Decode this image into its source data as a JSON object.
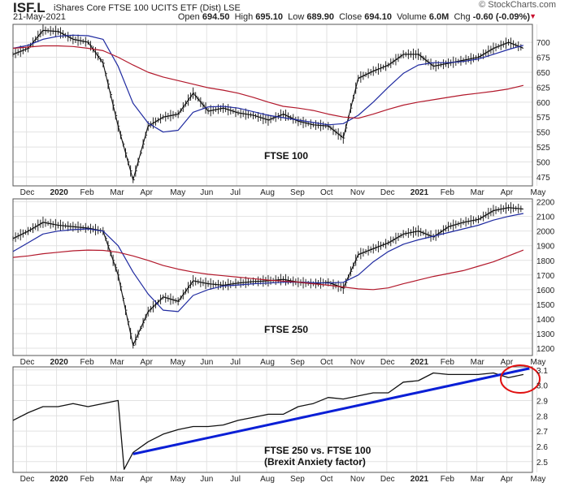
{
  "header": {
    "symbol": "ISF.L",
    "name": "iShares Core FTSE 100 UCITS ETF (Dist)",
    "exchange": "LSE",
    "date": "21-May-2021",
    "brand": "© StockCharts.com",
    "open_label": "Open",
    "open": "694.50",
    "high_label": "High",
    "high": "695.10",
    "low_label": "Low",
    "low": "689.90",
    "close_label": "Close",
    "close": "694.10",
    "volume_label": "Volume",
    "volume": "6.0M",
    "chg_label": "Chg",
    "chg": "-0.60 (-0.09%)",
    "chg_arrow": "▼"
  },
  "colors": {
    "price": "#111111",
    "ma_short": "#1f2aa0",
    "ma_long": "#b2182b",
    "trendline": "#0a1fd6",
    "circle": "#e01010",
    "grid": "#e2e2e2",
    "frame": "#555555"
  },
  "chart_data": [
    {
      "type": "line",
      "title": "FTSE 100",
      "x_months": [
        "Dec",
        "2020",
        "Feb",
        "Mar",
        "Apr",
        "May",
        "Jun",
        "Jul",
        "Aug",
        "Sep",
        "Oct",
        "Nov",
        "Dec",
        "2021",
        "Feb",
        "Mar",
        "Apr",
        "May"
      ],
      "ylim": [
        460,
        730
      ],
      "yticks": [
        475,
        500,
        525,
        550,
        575,
        600,
        625,
        650,
        675,
        700
      ],
      "series": [
        {
          "name": "Price",
          "style": "bars",
          "x": [
            0,
            0.5,
            1,
            1.5,
            2,
            2.5,
            3,
            3.5,
            4,
            4.5,
            5,
            5.5,
            6,
            6.5,
            7,
            7.5,
            8,
            8.5,
            9,
            9.5,
            10,
            10.5,
            11,
            11.5,
            12,
            12.5,
            13,
            13.5,
            14,
            14.5,
            15,
            15.5,
            16,
            16.5,
            17
          ],
          "values": [
            680,
            690,
            720,
            718,
            705,
            700,
            665,
            560,
            470,
            560,
            575,
            580,
            615,
            585,
            590,
            582,
            578,
            570,
            580,
            568,
            562,
            560,
            540,
            640,
            652,
            662,
            680,
            680,
            660,
            665,
            670,
            675,
            690,
            700,
            690
          ]
        },
        {
          "name": "50-day MA",
          "x": [
            0,
            0.5,
            1,
            1.5,
            2,
            2.5,
            3,
            3.5,
            4,
            4.5,
            5,
            5.5,
            6,
            6.5,
            7,
            7.5,
            8,
            8.5,
            9,
            9.5,
            10,
            10.5,
            11,
            11.5,
            12,
            12.5,
            13,
            13.5,
            14,
            14.5,
            15,
            15.5,
            16,
            16.5,
            17
          ],
          "values": [
            690,
            695,
            705,
            710,
            712,
            711,
            705,
            660,
            598,
            565,
            550,
            553,
            583,
            592,
            593,
            590,
            584,
            578,
            574,
            570,
            566,
            562,
            564,
            578,
            600,
            625,
            648,
            662,
            666,
            666,
            668,
            672,
            680,
            688,
            695
          ]
        },
        {
          "name": "200-day MA",
          "x": [
            0,
            0.5,
            1,
            1.5,
            2,
            2.5,
            3,
            3.5,
            4,
            4.5,
            5,
            5.5,
            6,
            6.5,
            7,
            7.5,
            8,
            8.5,
            9,
            9.5,
            10,
            10.5,
            11,
            11.5,
            12,
            12.5,
            13,
            13.5,
            14,
            14.5,
            15,
            15.5,
            16,
            16.5,
            17
          ],
          "values": [
            690,
            692,
            694,
            694,
            693,
            690,
            686,
            675,
            662,
            650,
            642,
            636,
            630,
            624,
            620,
            615,
            608,
            600,
            593,
            590,
            586,
            580,
            575,
            573,
            580,
            588,
            595,
            600,
            604,
            608,
            612,
            615,
            618,
            622,
            628
          ]
        }
      ]
    },
    {
      "type": "line",
      "title": "FTSE 250",
      "x_months": [
        "Dec",
        "2020",
        "Feb",
        "Mar",
        "Apr",
        "May",
        "Jun",
        "Jul",
        "Aug",
        "Sep",
        "Oct",
        "Nov",
        "Dec",
        "2021",
        "Feb",
        "Mar",
        "Apr",
        "May"
      ],
      "ylim": [
        1150,
        2220
      ],
      "yticks": [
        1200,
        1300,
        1400,
        1500,
        1600,
        1700,
        1800,
        1900,
        2000,
        2100,
        2200
      ],
      "series": [
        {
          "name": "Price",
          "style": "bars",
          "x": [
            0,
            0.5,
            1,
            1.5,
            2,
            2.5,
            3,
            3.5,
            4,
            4.5,
            5,
            5.5,
            6,
            6.5,
            7,
            7.5,
            8,
            8.5,
            9,
            9.5,
            10,
            10.5,
            11,
            11.5,
            12,
            12.5,
            13,
            13.5,
            14,
            14.5,
            15,
            15.5,
            16,
            16.5,
            17
          ],
          "values": [
            1950,
            2000,
            2060,
            2040,
            2030,
            2020,
            2000,
            1700,
            1220,
            1450,
            1550,
            1520,
            1660,
            1640,
            1630,
            1645,
            1655,
            1660,
            1670,
            1650,
            1640,
            1650,
            1610,
            1840,
            1880,
            1920,
            1980,
            2000,
            1960,
            2030,
            2060,
            2080,
            2140,
            2160,
            2150
          ]
        },
        {
          "name": "50-day MA",
          "x": [
            0,
            0.5,
            1,
            1.5,
            2,
            2.5,
            3,
            3.5,
            4,
            4.5,
            5,
            5.5,
            6,
            6.5,
            7,
            7.5,
            8,
            8.5,
            9,
            9.5,
            10,
            10.5,
            11,
            11.5,
            12,
            12.5,
            13,
            13.5,
            14,
            14.5,
            15,
            15.5,
            16,
            16.5,
            17
          ],
          "values": [
            1860,
            1920,
            1980,
            2000,
            2010,
            2015,
            2000,
            1900,
            1720,
            1570,
            1460,
            1450,
            1560,
            1600,
            1625,
            1632,
            1640,
            1645,
            1650,
            1652,
            1648,
            1645,
            1650,
            1700,
            1790,
            1860,
            1910,
            1940,
            1965,
            1990,
            2015,
            2040,
            2075,
            2100,
            2120
          ]
        },
        {
          "name": "200-day MA",
          "x": [
            0,
            0.5,
            1,
            1.5,
            2,
            2.5,
            3,
            3.5,
            4,
            4.5,
            5,
            5.5,
            6,
            6.5,
            7,
            7.5,
            8,
            8.5,
            9,
            9.5,
            10,
            10.5,
            11,
            11.5,
            12,
            12.5,
            13,
            13.5,
            14,
            14.5,
            15,
            15.5,
            16,
            16.5,
            17
          ],
          "values": [
            1820,
            1830,
            1845,
            1855,
            1865,
            1870,
            1868,
            1855,
            1830,
            1800,
            1765,
            1740,
            1720,
            1705,
            1695,
            1685,
            1675,
            1665,
            1658,
            1652,
            1640,
            1630,
            1618,
            1605,
            1600,
            1612,
            1640,
            1665,
            1690,
            1710,
            1730,
            1760,
            1790,
            1830,
            1870
          ]
        }
      ]
    },
    {
      "type": "line",
      "title": "FTSE 250 vs. FTSE 100",
      "subtitle": "(Brexit Anxiety factor)",
      "x_months": [
        "Dec",
        "2020",
        "Feb",
        "Mar",
        "Apr",
        "May",
        "Jun",
        "Jul",
        "Aug",
        "Sep",
        "Oct",
        "Nov",
        "Dec",
        "2021",
        "Feb",
        "Mar",
        "Apr",
        "May"
      ],
      "ylim": [
        2.43,
        3.12
      ],
      "yticks": [
        2.5,
        2.6,
        2.7,
        2.8,
        2.9,
        3.0,
        3.1
      ],
      "ytick_labels": [
        "2.5",
        "2.6",
        "2.7",
        "2.8",
        "2.9",
        "3.0",
        "3.1"
      ],
      "series": [
        {
          "name": "Ratio",
          "x": [
            0,
            0.5,
            1,
            1.5,
            2,
            2.5,
            3,
            3.5,
            3.7,
            4,
            4.5,
            5,
            5.5,
            6,
            6.5,
            7,
            7.5,
            8,
            8.5,
            9,
            9.5,
            10,
            10.5,
            11,
            11.5,
            12,
            12.5,
            13,
            13.5,
            14,
            14.5,
            15,
            15.5,
            16,
            16.5,
            17
          ],
          "values": [
            2.77,
            2.82,
            2.86,
            2.86,
            2.88,
            2.86,
            2.88,
            2.9,
            2.45,
            2.56,
            2.63,
            2.68,
            2.71,
            2.73,
            2.73,
            2.74,
            2.77,
            2.79,
            2.81,
            2.81,
            2.86,
            2.88,
            2.92,
            2.91,
            2.93,
            2.95,
            2.95,
            3.02,
            3.03,
            3.08,
            3.07,
            3.07,
            3.07,
            3.08,
            3.05,
            3.07
          ]
        },
        {
          "name": "Trendline",
          "x": [
            4.0,
            17.2
          ],
          "values": [
            2.55,
            3.11
          ]
        }
      ],
      "annotation": "red circle around recent May 2021 values"
    }
  ]
}
